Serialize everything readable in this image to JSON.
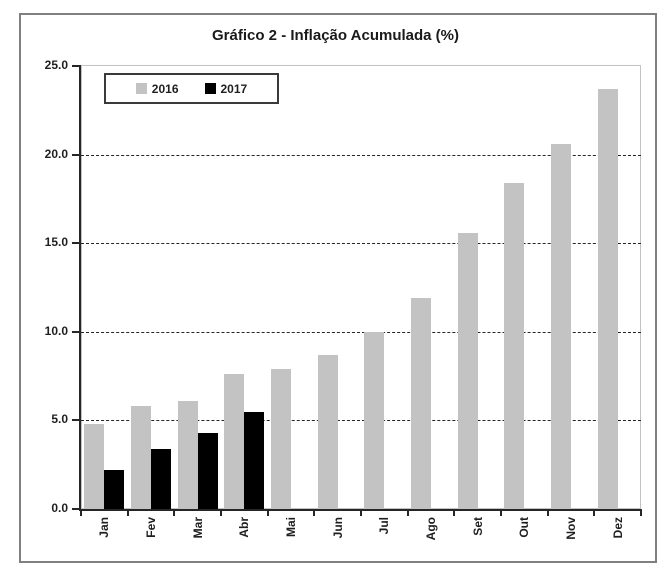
{
  "chart_data": {
    "type": "bar",
    "title": "Gráfico 2 - Inflação Acumulada (%)",
    "categories": [
      "Jan",
      "Fev",
      "Mar",
      "Abr",
      "Mai",
      "Jun",
      "Jul",
      "Ago",
      "Set",
      "Out",
      "Nov",
      "Dez"
    ],
    "series": [
      {
        "name": "2016",
        "color": "#c3c3c3",
        "values": [
          4.8,
          5.8,
          6.1,
          7.6,
          7.9,
          8.7,
          10.0,
          11.9,
          15.6,
          18.4,
          20.6,
          23.7
        ]
      },
      {
        "name": "2017",
        "color": "#000000",
        "values": [
          2.2,
          3.4,
          4.3,
          5.5,
          null,
          null,
          null,
          null,
          null,
          null,
          null,
          null
        ]
      }
    ],
    "xlabel": "",
    "ylabel": "",
    "ylim": [
      0,
      25
    ],
    "ytick_step": 5,
    "ytick_labels": [
      "0.0",
      "5.0",
      "10.0",
      "15.0",
      "20.0",
      "25.0"
    ],
    "grid": "horizontal-dashed",
    "legend_position": "top-left-inside"
  },
  "colors": {
    "figure_border": "#808080",
    "plot_border": "#c2c2c2",
    "axis": "#262626",
    "gridline": "#262626",
    "text": "#1f1f1f",
    "background": "#ffffff"
  }
}
